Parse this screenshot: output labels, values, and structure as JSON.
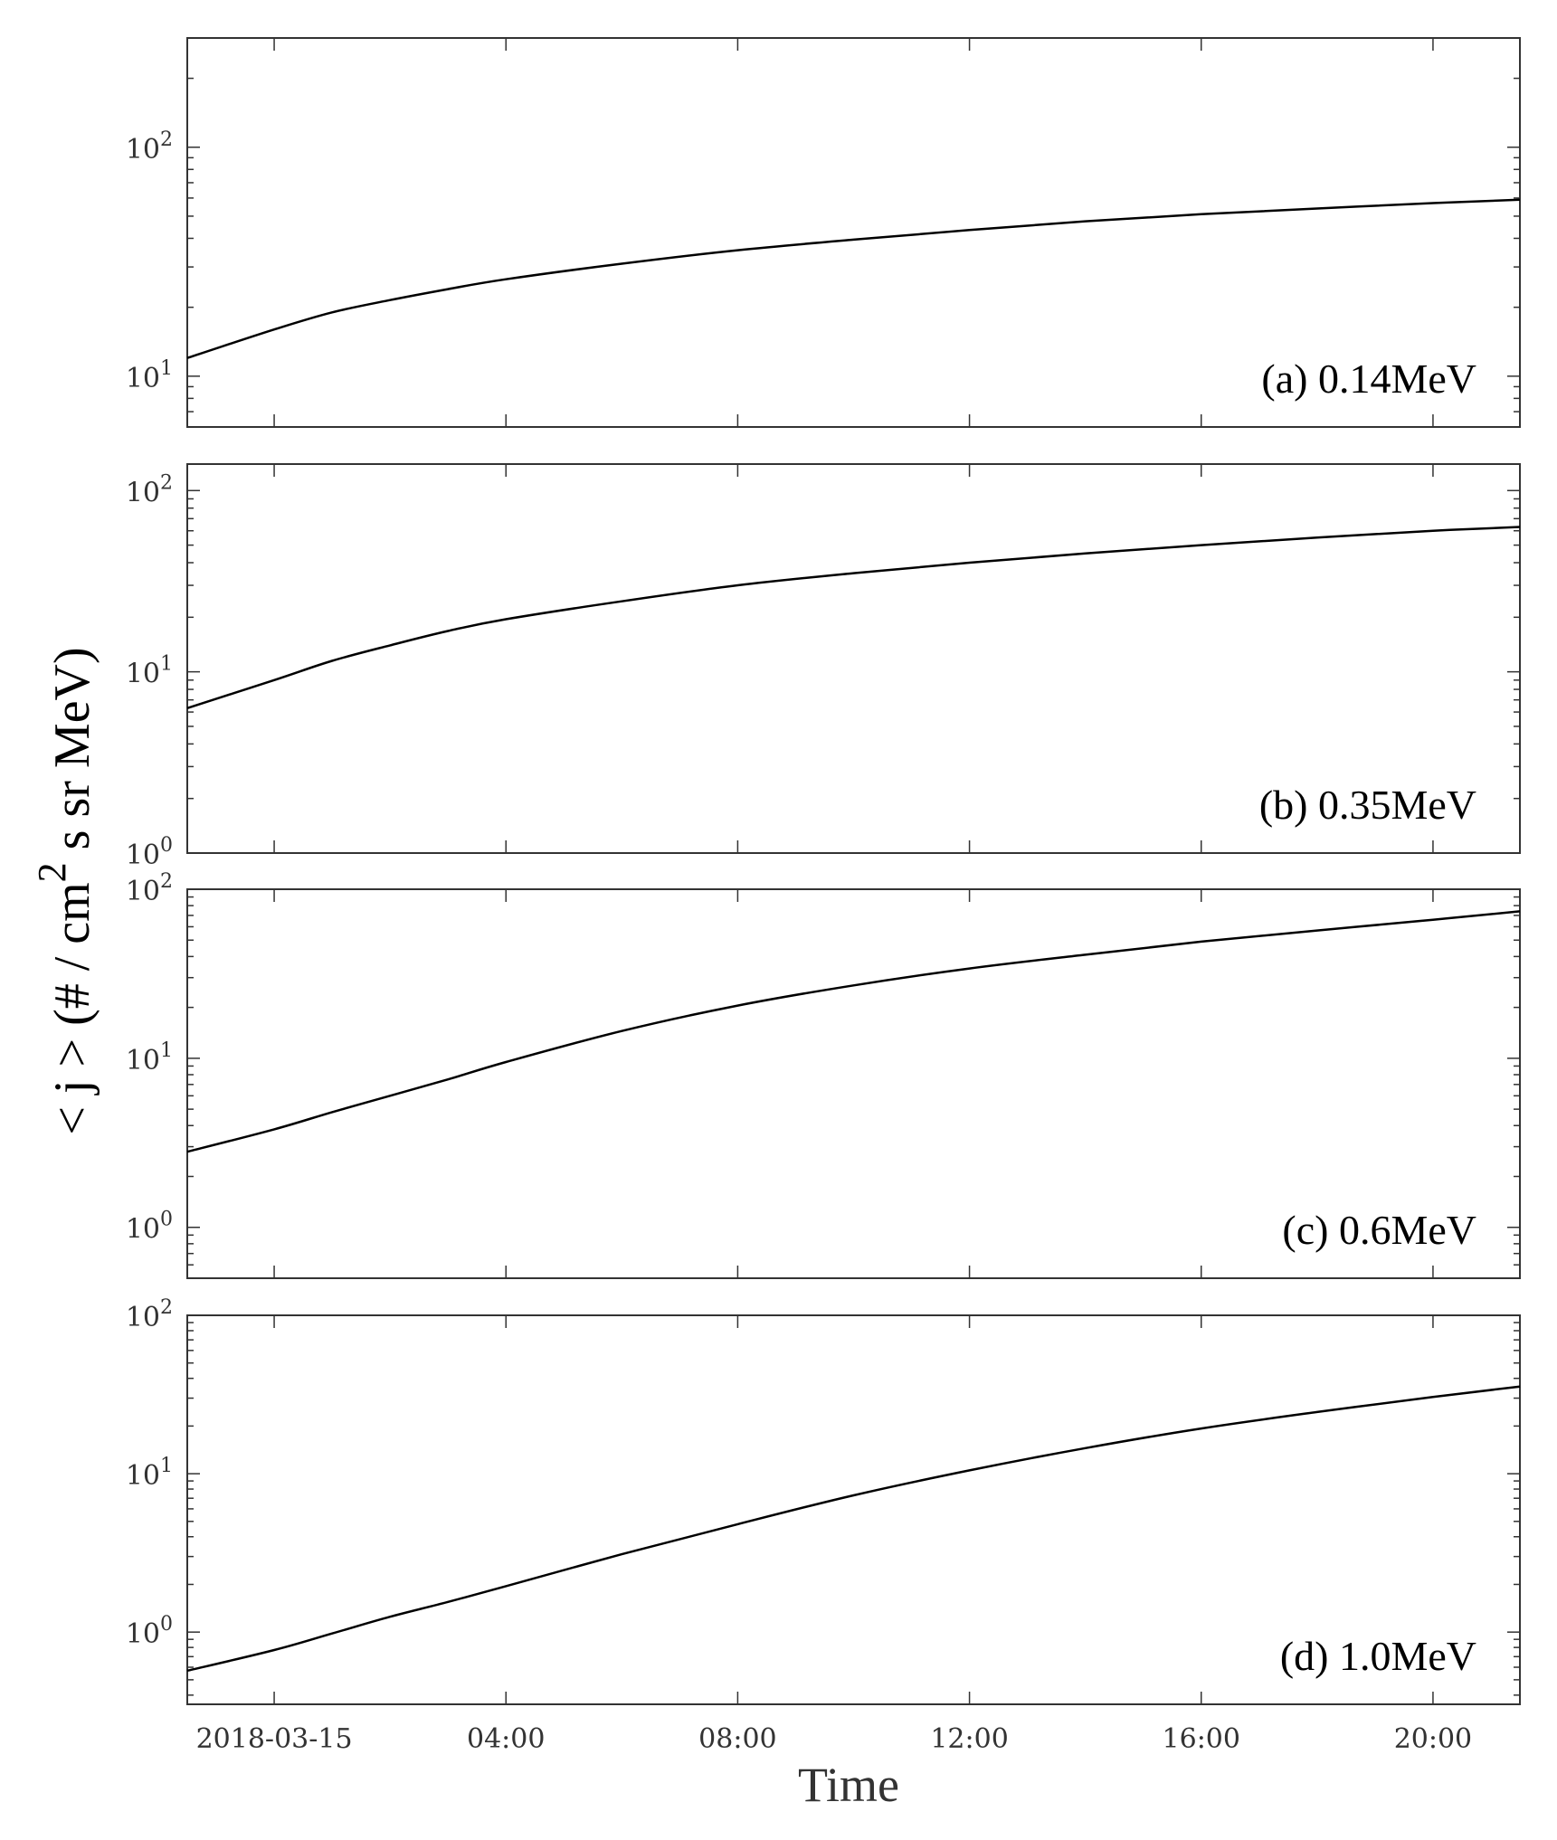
{
  "chart_data": [
    {
      "type": "line",
      "panel_label": "(a) 0.14MeV",
      "yscale": "log",
      "ylim": [
        6,
        300
      ],
      "yticks": [
        {
          "value": 10,
          "base": "10",
          "exp": "1"
        },
        {
          "value": 100,
          "base": "10",
          "exp": "2"
        }
      ],
      "x_hours": [
        -1.5,
        0,
        1,
        2,
        3,
        4,
        6,
        8,
        10,
        12,
        14,
        16,
        18,
        20,
        21.5
      ],
      "values": [
        12,
        16,
        19,
        21.5,
        24,
        26.5,
        31,
        35.5,
        39.5,
        43.5,
        47.5,
        51,
        54,
        57,
        59
      ]
    },
    {
      "type": "line",
      "panel_label": "(b) 0.35MeV",
      "yscale": "log",
      "ylim": [
        1,
        140
      ],
      "yticks": [
        {
          "value": 1,
          "base": "10",
          "exp": "0"
        },
        {
          "value": 10,
          "base": "10",
          "exp": "1"
        },
        {
          "value": 100,
          "base": "10",
          "exp": "2"
        }
      ],
      "x_hours": [
        -1.5,
        0,
        1,
        2,
        3,
        4,
        6,
        8,
        10,
        12,
        14,
        16,
        18,
        20,
        21.5
      ],
      "values": [
        6.3,
        9,
        11.5,
        14,
        16.8,
        19.5,
        24.5,
        30,
        35,
        40,
        45,
        50,
        55,
        60,
        63
      ]
    },
    {
      "type": "line",
      "panel_label": "(c) 0.6MeV",
      "yscale": "log",
      "ylim": [
        0.5,
        100
      ],
      "yticks": [
        {
          "value": 1,
          "base": "10",
          "exp": "0"
        },
        {
          "value": 10,
          "base": "10",
          "exp": "1"
        },
        {
          "value": 100,
          "base": "10",
          "exp": "2"
        }
      ],
      "x_hours": [
        -1.5,
        0,
        1,
        2,
        3,
        4,
        6,
        8,
        10,
        12,
        14,
        16,
        18,
        20,
        21.5
      ],
      "values": [
        2.8,
        3.8,
        4.8,
        6,
        7.5,
        9.5,
        14.5,
        20.5,
        27,
        34,
        41,
        49,
        57,
        66,
        74
      ]
    },
    {
      "type": "line",
      "panel_label": "(d) 1.0MeV",
      "yscale": "log",
      "ylim": [
        0.35,
        100
      ],
      "yticks": [
        {
          "value": 1,
          "base": "10",
          "exp": "0"
        },
        {
          "value": 10,
          "base": "10",
          "exp": "1"
        },
        {
          "value": 100,
          "base": "10",
          "exp": "2"
        }
      ],
      "x_hours": [
        -1.5,
        0,
        1,
        2,
        3,
        4,
        6,
        8,
        10,
        12,
        14,
        16,
        18,
        20,
        21.5
      ],
      "values": [
        0.57,
        0.77,
        0.98,
        1.25,
        1.55,
        1.95,
        3.1,
        4.8,
        7.3,
        10.5,
        14.5,
        19.3,
        24.5,
        30.5,
        35.5
      ]
    }
  ],
  "x_axis": {
    "label": "Time",
    "xlim_hours": [
      -1.5,
      21.5
    ],
    "ticks": [
      {
        "hour": 0,
        "label": "2018-03-15"
      },
      {
        "hour": 4,
        "label": "04:00"
      },
      {
        "hour": 8,
        "label": "08:00"
      },
      {
        "hour": 12,
        "label": "12:00"
      },
      {
        "hour": 16,
        "label": "16:00"
      },
      {
        "hour": 20,
        "label": "20:00"
      }
    ]
  },
  "y_axis": {
    "label_main": "< j >  (# / cm",
    "label_sup": "2",
    "label_rest": " s sr MeV)"
  },
  "colors": {
    "line": "#000000",
    "frame": "#333333",
    "background": "#ffffff"
  }
}
